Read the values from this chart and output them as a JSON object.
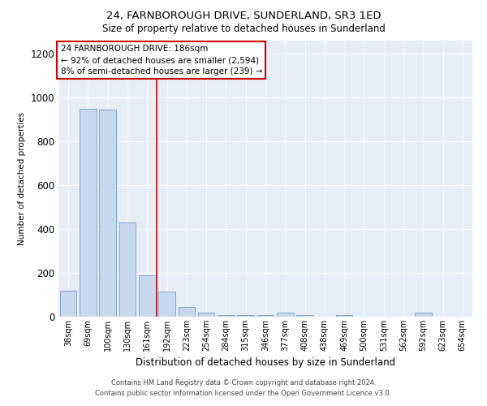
{
  "title": "24, FARNBOROUGH DRIVE, SUNDERLAND, SR3 1ED",
  "subtitle": "Size of property relative to detached houses in Sunderland",
  "xlabel": "Distribution of detached houses by size in Sunderland",
  "ylabel": "Number of detached properties",
  "bar_color": "#c8d8ee",
  "bar_edge_color": "#7fa8cc",
  "vline_color": "#cc0000",
  "vline_x_index": 5,
  "categories": [
    "38sqm",
    "69sqm",
    "100sqm",
    "130sqm",
    "161sqm",
    "192sqm",
    "223sqm",
    "254sqm",
    "284sqm",
    "315sqm",
    "346sqm",
    "377sqm",
    "408sqm",
    "438sqm",
    "469sqm",
    "500sqm",
    "531sqm",
    "562sqm",
    "592sqm",
    "623sqm",
    "654sqm"
  ],
  "values": [
    120,
    950,
    945,
    430,
    190,
    115,
    45,
    18,
    8,
    8,
    8,
    18,
    8,
    0,
    8,
    0,
    0,
    0,
    18,
    0,
    0
  ],
  "ylim": [
    0,
    1260
  ],
  "yticks": [
    0,
    200,
    400,
    600,
    800,
    1000,
    1200
  ],
  "annotation_line1": "24 FARNBOROUGH DRIVE: 186sqm",
  "annotation_line2": "← 92% of detached houses are smaller (2,594)",
  "annotation_line3": "8% of semi-detached houses are larger (239) →",
  "annotation_box_facecolor": "white",
  "annotation_box_edgecolor": "#cc0000",
  "footer_line1": "Contains HM Land Registry data © Crown copyright and database right 2024.",
  "footer_line2": "Contains public sector information licensed under the Open Government Licence v3.0.",
  "fig_bg_color": "white",
  "plot_bg_color": "#e8eef8",
  "grid_color": "white",
  "figsize": [
    6.0,
    5.0
  ],
  "dpi": 100
}
